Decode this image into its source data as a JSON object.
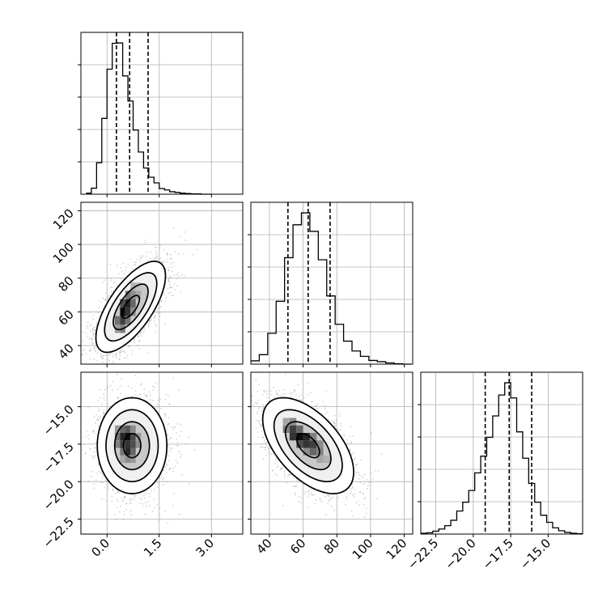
{
  "chart_data": {
    "type": "corner",
    "colors": {
      "line": "#000000",
      "grid": "#b0b0b0",
      "scatter": "#808080"
    },
    "grid": true,
    "parameters": [
      {
        "range": [
          -0.75,
          3.9
        ],
        "ticks": [
          0.0,
          1.5,
          3.0
        ],
        "tick_labels": [
          "0.0",
          "1.5",
          "3.0"
        ],
        "quantiles": [
          0.27,
          0.65,
          1.18
        ],
        "hist_edges": [
          -0.6,
          -0.45,
          -0.3,
          -0.15,
          0.0,
          0.15,
          0.3,
          0.45,
          0.6,
          0.75,
          0.9,
          1.05,
          1.2,
          1.35,
          1.5,
          1.65,
          1.8,
          1.95,
          2.1,
          2.25,
          2.4,
          2.55,
          2.7,
          2.85,
          3.0
        ],
        "hist_counts": [
          3,
          17,
          89,
          214,
          353,
          426,
          427,
          334,
          263,
          181,
          119,
          74,
          48,
          32,
          16,
          12,
          7,
          5,
          3,
          2,
          1,
          1,
          0,
          0
        ]
      },
      {
        "range": [
          29,
          125
        ],
        "ticks": [
          40,
          60,
          80,
          100,
          120
        ],
        "tick_labels": [
          "40",
          "60",
          "80",
          "100",
          "120"
        ],
        "quantiles": [
          51,
          63,
          76
        ],
        "hist_edges": [
          29,
          34,
          39,
          44,
          49,
          54,
          59,
          64,
          69,
          74,
          79,
          84,
          89,
          94,
          99,
          104,
          109,
          114,
          119,
          124
        ],
        "hist_counts": [
          8,
          23,
          75,
          153,
          259,
          339,
          368,
          323,
          254,
          166,
          97,
          56,
          32,
          19,
          9,
          6,
          3,
          1,
          0
        ]
      },
      {
        "range": [
          -23.5,
          -12.7
        ],
        "ticks": [
          -22.5,
          -20.0,
          -17.5,
          -15.0
        ],
        "tick_labels": [
          "−22.5",
          "−20.0",
          "−17.5",
          "−15.0"
        ],
        "quantiles": [
          -19.2,
          -17.6,
          -16.1
        ],
        "hist_edges": [
          -23.5,
          -23.1,
          -22.7,
          -22.3,
          -21.9,
          -21.5,
          -21.1,
          -20.7,
          -20.3,
          -19.9,
          -19.5,
          -19.1,
          -18.7,
          -18.3,
          -17.9,
          -17.5,
          -17.1,
          -16.7,
          -16.3,
          -15.9,
          -15.5,
          -15.1,
          -14.7,
          -14.3,
          -13.9,
          -13.5,
          -13.1,
          -12.7
        ],
        "hist_counts": [
          2,
          3,
          7,
          12,
          20,
          33,
          55,
          76,
          104,
          146,
          186,
          231,
          282,
          332,
          361,
          325,
          244,
          181,
          121,
          76,
          45,
          28,
          15,
          8,
          4,
          2,
          1
        ]
      }
    ],
    "pairs": [
      {
        "x_param": 0,
        "y_param": 1,
        "mean": [
          0.68,
          63
        ],
        "sd": [
          0.5,
          13.5
        ],
        "corr": 0.68,
        "contour_levels": [
          0.5,
          1.0,
          1.5,
          2.0
        ],
        "density_cells": [
          {
            "x": 0.3,
            "y": 50,
            "v": 0.4
          },
          {
            "x": 0.45,
            "y": 50,
            "v": 0.5
          },
          {
            "x": 0.3,
            "y": 55,
            "v": 0.55
          },
          {
            "x": 0.45,
            "y": 55,
            "v": 0.75
          },
          {
            "x": 0.6,
            "y": 55,
            "v": 0.55
          },
          {
            "x": 0.45,
            "y": 60,
            "v": 0.95
          },
          {
            "x": 0.6,
            "y": 60,
            "v": 0.8
          },
          {
            "x": 0.75,
            "y": 60,
            "v": 0.45
          },
          {
            "x": 0.45,
            "y": 65,
            "v": 0.7
          },
          {
            "x": 0.6,
            "y": 65,
            "v": 0.85
          },
          {
            "x": 0.75,
            "y": 65,
            "v": 0.6
          },
          {
            "x": 0.6,
            "y": 70,
            "v": 0.55
          },
          {
            "x": 0.75,
            "y": 70,
            "v": 0.45
          },
          {
            "x": 0.9,
            "y": 70,
            "v": 0.35
          },
          {
            "x": 0.75,
            "y": 75,
            "v": 0.3
          },
          {
            "x": 0.9,
            "y": 75,
            "v": 0.25
          }
        ]
      },
      {
        "x_param": 0,
        "y_param": 2,
        "mean": [
          0.72,
          -17.6
        ],
        "sd": [
          0.5,
          1.6
        ],
        "corr": 0.0,
        "contour_levels": [
          0.5,
          1.0,
          1.5,
          2.0
        ],
        "density_cells": [
          {
            "x": 0.3,
            "y": -16.5,
            "v": 0.4
          },
          {
            "x": 0.45,
            "y": -16.5,
            "v": 0.6
          },
          {
            "x": 0.6,
            "y": -16.5,
            "v": 0.65
          },
          {
            "x": 0.75,
            "y": -16.5,
            "v": 0.45
          },
          {
            "x": 0.3,
            "y": -17.0,
            "v": 0.55
          },
          {
            "x": 0.45,
            "y": -17.0,
            "v": 0.85
          },
          {
            "x": 0.6,
            "y": -17.0,
            "v": 0.95
          },
          {
            "x": 0.75,
            "y": -17.0,
            "v": 0.7
          },
          {
            "x": 0.9,
            "y": -17.0,
            "v": 0.4
          },
          {
            "x": 0.3,
            "y": -17.5,
            "v": 0.5
          },
          {
            "x": 0.45,
            "y": -17.5,
            "v": 0.75
          },
          {
            "x": 0.6,
            "y": -17.5,
            "v": 0.8
          },
          {
            "x": 0.75,
            "y": -17.5,
            "v": 0.7
          },
          {
            "x": 0.9,
            "y": -17.5,
            "v": 0.45
          },
          {
            "x": 0.45,
            "y": -18.0,
            "v": 0.55
          },
          {
            "x": 0.6,
            "y": -18.0,
            "v": 0.85
          },
          {
            "x": 0.75,
            "y": -18.0,
            "v": 0.6
          },
          {
            "x": 0.45,
            "y": -18.5,
            "v": 0.35
          },
          {
            "x": 0.6,
            "y": -18.5,
            "v": 0.45
          },
          {
            "x": 0.75,
            "y": -18.5,
            "v": 0.4
          }
        ]
      },
      {
        "x_param": 1,
        "y_param": 2,
        "mean": [
          63,
          -17.6
        ],
        "sd": [
          13.5,
          1.6
        ],
        "corr": -0.55,
        "contour_levels": [
          0.5,
          1.0,
          1.5,
          2.0
        ],
        "density_cells": [
          {
            "x": 50,
            "y": -16.0,
            "v": 0.35
          },
          {
            "x": 54,
            "y": -16.0,
            "v": 0.45
          },
          {
            "x": 50,
            "y": -16.5,
            "v": 0.5
          },
          {
            "x": 54,
            "y": -16.5,
            "v": 0.75
          },
          {
            "x": 58,
            "y": -16.5,
            "v": 0.6
          },
          {
            "x": 54,
            "y": -17.0,
            "v": 0.8
          },
          {
            "x": 58,
            "y": -17.0,
            "v": 0.95
          },
          {
            "x": 62,
            "y": -17.0,
            "v": 0.85
          },
          {
            "x": 66,
            "y": -17.0,
            "v": 0.5
          },
          {
            "x": 58,
            "y": -17.5,
            "v": 0.7
          },
          {
            "x": 62,
            "y": -17.5,
            "v": 0.8
          },
          {
            "x": 66,
            "y": -17.5,
            "v": 0.75
          },
          {
            "x": 70,
            "y": -17.5,
            "v": 0.45
          },
          {
            "x": 62,
            "y": -18.0,
            "v": 0.45
          },
          {
            "x": 66,
            "y": -18.0,
            "v": 0.6
          },
          {
            "x": 70,
            "y": -18.0,
            "v": 0.5
          },
          {
            "x": 70,
            "y": -18.5,
            "v": 0.35
          },
          {
            "x": 74,
            "y": -18.5,
            "v": 0.3
          }
        ]
      }
    ]
  }
}
